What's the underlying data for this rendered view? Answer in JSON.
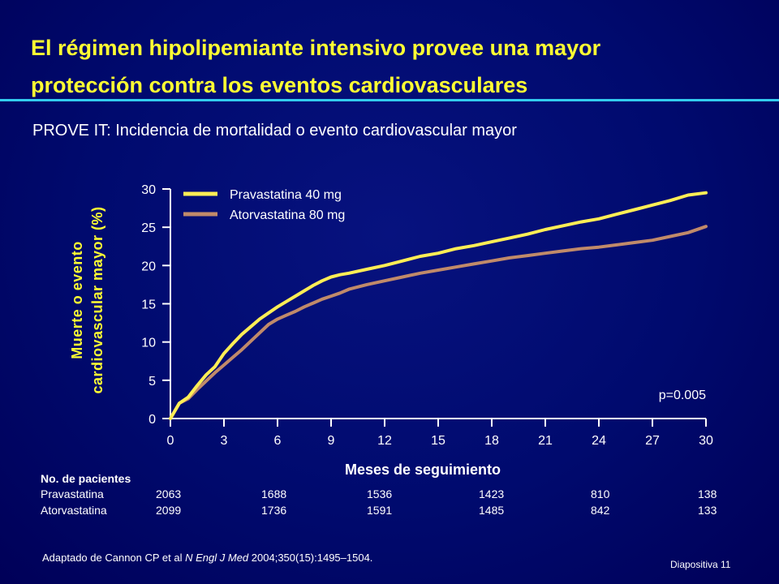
{
  "slide": {
    "title_line1": "El régimen hipolipemiante intensivo provee una mayor",
    "title_line2": "protección contra los eventos cardiovasculares",
    "subtitle": "PROVE IT: Incidencia de mortalidad o evento cardiovascular mayor",
    "footnote_pre": "Adaptado de Cannon CP et al ",
    "footnote_journal": "N Engl J Med",
    "footnote_post": " 2004;350(15):1495–1504.",
    "slide_number": "Diapositiva 11"
  },
  "chart_data": {
    "type": "line",
    "ylabel_line1": "Muerte o evento",
    "ylabel_line2": "cardiovascular mayor (%)",
    "xlabel": "Meses de seguimiento",
    "xlim": [
      0,
      30
    ],
    "ylim": [
      0,
      30
    ],
    "x_ticks": [
      0,
      3,
      6,
      9,
      12,
      15,
      18,
      21,
      24,
      27,
      30
    ],
    "y_ticks": [
      0,
      5,
      10,
      15,
      20,
      25,
      30
    ],
    "x_tick_labels": [
      "0",
      "3",
      "6",
      "9",
      "12",
      "15",
      "18",
      "21",
      "24",
      "27",
      "30"
    ],
    "y_tick_labels": [
      "0",
      "5",
      "10",
      "15",
      "20",
      "25",
      "30"
    ],
    "annotation": "p=0.005",
    "legend_placement": "top-left",
    "grid": false,
    "series": [
      {
        "name": "Pravastatina 40 mg",
        "color": "#ffee55",
        "x": [
          0,
          0.5,
          1,
          1.5,
          2,
          2.5,
          3,
          3.5,
          4,
          4.5,
          5,
          5.5,
          6,
          6.5,
          7,
          7.5,
          8,
          8.5,
          9,
          9.5,
          10,
          11,
          12,
          13,
          14,
          15,
          16,
          17,
          18,
          19,
          20,
          21,
          22,
          23,
          24,
          25,
          26,
          27,
          28,
          29,
          30
        ],
        "values": [
          0,
          2,
          2.8,
          4.3,
          5.7,
          6.8,
          8.5,
          9.8,
          11.0,
          12.0,
          13.0,
          13.8,
          14.6,
          15.3,
          16.0,
          16.7,
          17.4,
          18.0,
          18.5,
          18.8,
          19.0,
          19.5,
          20.0,
          20.6,
          21.2,
          21.6,
          22.2,
          22.6,
          23.1,
          23.6,
          24.1,
          24.7,
          25.2,
          25.7,
          26.1,
          26.7,
          27.3,
          27.9,
          28.5,
          29.2,
          29.5
        ]
      },
      {
        "name": "Atorvastatina 80 mg",
        "color": "#c08a6a",
        "x": [
          0,
          0.5,
          1,
          1.5,
          2,
          2.5,
          3,
          3.5,
          4,
          4.5,
          5,
          5.5,
          6,
          6.5,
          7,
          7.5,
          8,
          8.5,
          9,
          9.5,
          10,
          11,
          12,
          13,
          14,
          15,
          16,
          17,
          18,
          19,
          20,
          21,
          22,
          23,
          24,
          25,
          26,
          27,
          28,
          29,
          30
        ],
        "values": [
          0,
          2,
          2.6,
          3.8,
          4.9,
          6.0,
          7.0,
          8.0,
          9.0,
          10.1,
          11.2,
          12.3,
          13.0,
          13.5,
          14.0,
          14.6,
          15.1,
          15.6,
          16.0,
          16.4,
          16.9,
          17.5,
          18.0,
          18.5,
          19.0,
          19.4,
          19.8,
          20.2,
          20.6,
          21.0,
          21.3,
          21.6,
          21.9,
          22.2,
          22.4,
          22.7,
          23.0,
          23.3,
          23.8,
          24.3,
          25.1
        ]
      }
    ]
  },
  "patients": {
    "header": "No. de pacientes",
    "rows": [
      {
        "label": "Pravastatina",
        "values": [
          "2063",
          "1688",
          "1536",
          "1423",
          "810",
          "138"
        ]
      },
      {
        "label": "Atorvastatina",
        "values": [
          "2099",
          "1736",
          "1591",
          "1485",
          "842",
          "133"
        ]
      }
    ]
  }
}
